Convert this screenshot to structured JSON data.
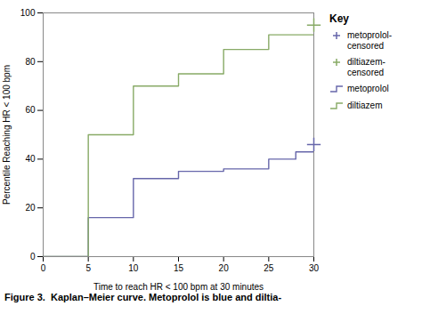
{
  "chart_data": {
    "type": "line",
    "xlabel": "Time to reach HR < 100 bpm at 30 minutes",
    "ylabel": "Percentile Reaching HR < 100 bpm",
    "caption": "Figure 3.  Kaplan–Meier curve. Metoprolol is blue and diltia-",
    "legend_title": "Key",
    "legend": "right",
    "grid": false,
    "xlim": [
      0,
      30
    ],
    "ylim": [
      0,
      100
    ],
    "xticks": [
      0,
      5,
      10,
      15,
      20,
      25,
      30
    ],
    "yticks": [
      0,
      20,
      40,
      60,
      80,
      100
    ],
    "series": [
      {
        "name": "metoprolol-\ncensored",
        "type": "scatter",
        "marker": "plus",
        "color": "#6666aa",
        "x": [
          30
        ],
        "values": [
          46
        ]
      },
      {
        "name": "diltiazem-\ncensored",
        "type": "scatter",
        "marker": "plus",
        "color": "#88aa66",
        "x": [
          30
        ],
        "values": [
          95
        ]
      },
      {
        "name": "metoprolol",
        "type": "step",
        "color": "#6666aa",
        "x": [
          0,
          5,
          5,
          8,
          8,
          10,
          10,
          15,
          15,
          20,
          20,
          25,
          25,
          28,
          28,
          30
        ],
        "values": [
          0,
          0,
          16,
          16,
          16,
          16,
          32,
          32,
          35,
          35,
          36,
          36,
          40,
          40,
          43,
          43
        ]
      },
      {
        "name": "diltiazem",
        "type": "step",
        "color": "#88aa66",
        "x": [
          0,
          5,
          5,
          10,
          10,
          15,
          15,
          20,
          20,
          25,
          25,
          30
        ],
        "values": [
          0,
          0,
          50,
          50,
          70,
          70,
          75,
          75,
          85,
          85,
          91,
          91
        ]
      }
    ]
  }
}
